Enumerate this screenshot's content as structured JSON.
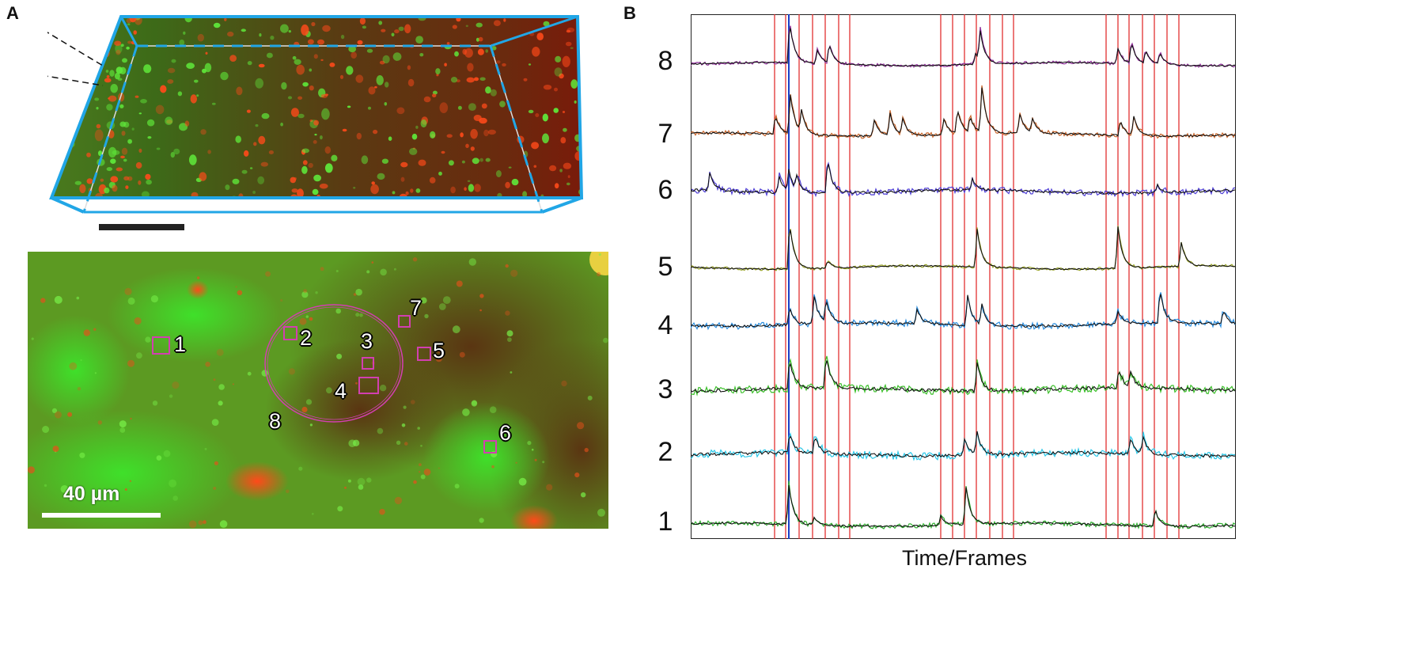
{
  "figure": {
    "panels": {
      "a": "A",
      "b": "B"
    },
    "panel_a": {
      "roi_labels": [
        "1",
        "2",
        "3",
        "4",
        "5",
        "6",
        "7",
        "8"
      ],
      "scale_bar_label": "40 µm"
    },
    "panel_b": {
      "trace_labels": [
        "8",
        "7",
        "6",
        "5",
        "4",
        "3",
        "2",
        "1"
      ],
      "x_axis_label": "Time/Frames"
    },
    "colors": {
      "trace_8": "#8e2d9a",
      "trace_7": "#c9652a",
      "trace_6": "#4f3fd6",
      "trace_5": "#9aa52a",
      "trace_4": "#2a8ee0",
      "trace_3": "#3bbf2a",
      "trace_2": "#2ac7e8",
      "trace_1": "#2fb02f",
      "event_lines": "#e02020",
      "stimulus_line": "#1a3fc8",
      "roi_boxes": "#d23fb0",
      "volume_frame": "#21a6e6"
    }
  }
}
